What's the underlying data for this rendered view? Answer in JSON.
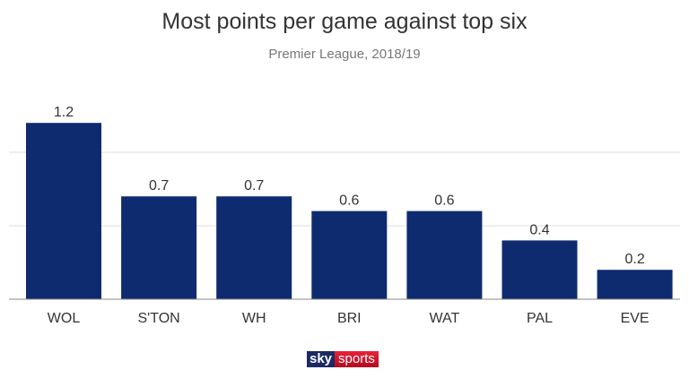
{
  "chart_data": {
    "type": "bar",
    "title": "Most points per game against top six",
    "subtitle": "Premier League, 2018/19",
    "categories": [
      "WOL",
      "S'TON",
      "WH",
      "BRI",
      "WAT",
      "PAL",
      "EVE"
    ],
    "values": [
      1.2,
      0.7,
      0.7,
      0.6,
      0.6,
      0.4,
      0.2
    ],
    "value_labels": [
      "1.2",
      "0.7",
      "0.7",
      "0.6",
      "0.6",
      "0.4",
      "0.2"
    ],
    "xlabel": "",
    "ylabel": "",
    "ylim": [
      0,
      1.2
    ],
    "gridlines": [
      0.5,
      1.0
    ],
    "grid": true,
    "bar_color": "#0f2b6f"
  },
  "logo": {
    "part1": "sky",
    "part2": "sports"
  }
}
